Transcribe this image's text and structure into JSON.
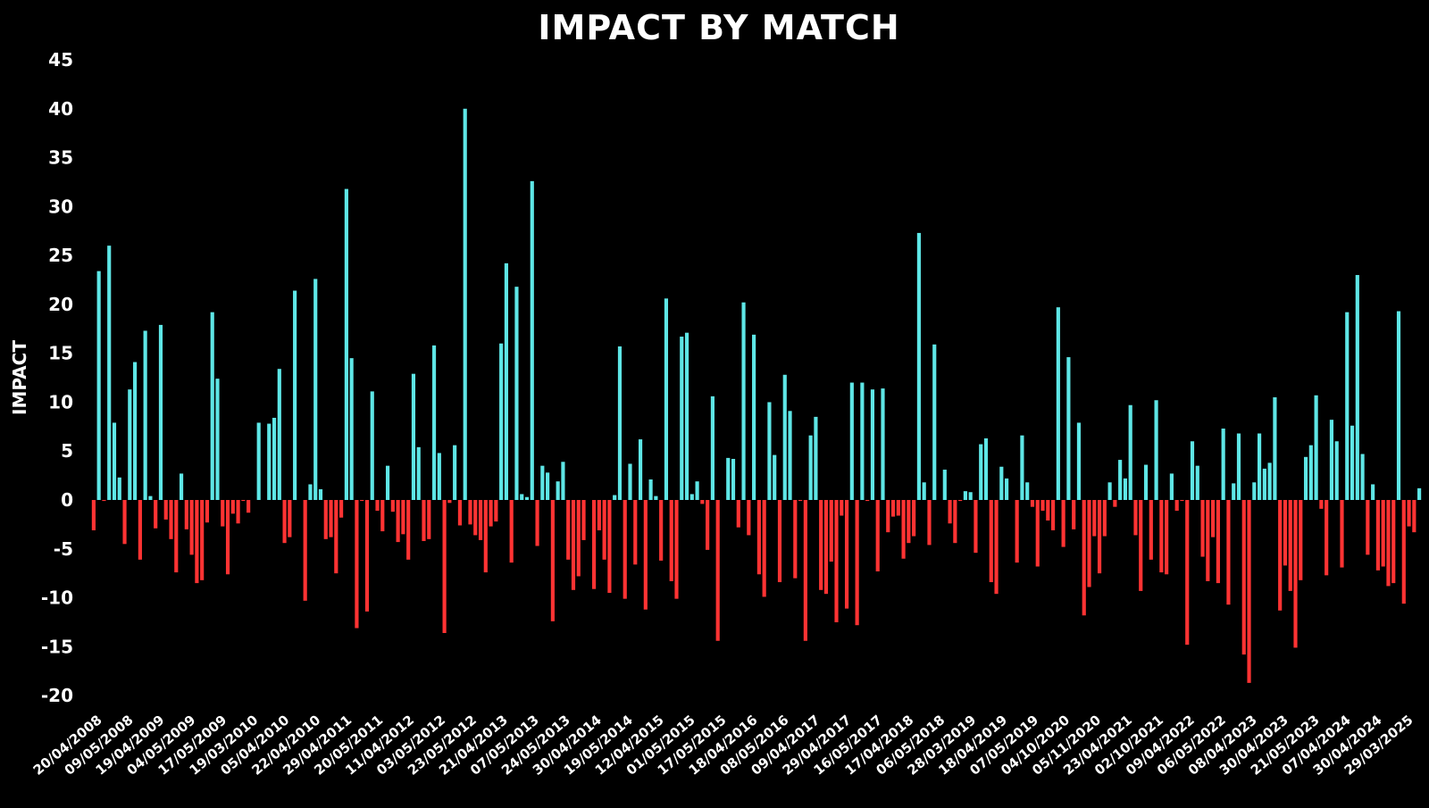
{
  "chart_data": {
    "type": "bar",
    "title": "IMPACT BY MATCH",
    "xlabel": "",
    "ylabel": "IMPACT",
    "ylim": [
      -20,
      45
    ],
    "yticks": [
      45,
      40,
      35,
      30,
      25,
      20,
      15,
      10,
      5,
      0,
      -5,
      -10,
      -15,
      -20
    ],
    "grid": false,
    "positive_color": "#5ee6e6",
    "negative_color": "#ff3333",
    "x_tick_labels": [
      "20/04/2008",
      "09/05/2008",
      "19/04/2009",
      "04/05/2009",
      "17/05/2009",
      "19/03/2010",
      "05/04/2010",
      "22/04/2010",
      "29/04/2011",
      "20/05/2011",
      "11/04/2012",
      "03/05/2012",
      "23/05/2012",
      "21/04/2013",
      "07/05/2013",
      "24/05/2013",
      "30/04/2014",
      "19/05/2014",
      "12/04/2015",
      "01/05/2015",
      "17/05/2015",
      "18/04/2016",
      "08/05/2016",
      "09/04/2017",
      "29/04/2017",
      "16/05/2017",
      "17/04/2018",
      "06/05/2018",
      "28/03/2019",
      "18/04/2019",
      "07/05/2019",
      "04/10/2020",
      "05/11/2020",
      "23/04/2021",
      "02/10/2021",
      "09/04/2022",
      "06/05/2022",
      "08/04/2023",
      "30/04/2023",
      "21/05/2023",
      "07/04/2024",
      "30/04/2024",
      "29/03/2025"
    ],
    "values": [
      -3.1,
      23.4,
      -0.1,
      26,
      7.9,
      2.3,
      -4.5,
      11.3,
      14.1,
      -6.1,
      17.3,
      0.4,
      -2.9,
      17.9,
      -2,
      -4,
      -7.4,
      2.7,
      -3,
      -5.6,
      -8.5,
      -8.2,
      -2.3,
      19.2,
      12.4,
      -2.7,
      -7.6,
      -1.4,
      -2.4,
      -0.1,
      -1.3,
      0,
      7.9,
      0,
      7.8,
      8.4,
      13.4,
      -4.4,
      -3.8,
      21.4,
      0,
      -10.3,
      1.6,
      22.6,
      1.1,
      -4,
      -3.8,
      -7.5,
      -1.8,
      31.8,
      14.5,
      -13.1,
      -0.1,
      -11.4,
      11.1,
      -1.1,
      -3.2,
      3.5,
      -1.2,
      -4.3,
      -3.5,
      -6.1,
      12.9,
      5.4,
      -4.2,
      -4,
      15.8,
      4.8,
      -13.6,
      -0.3,
      5.6,
      -2.6,
      40,
      -2.5,
      -3.6,
      -4.1,
      -7.4,
      -2.7,
      -2.2,
      16,
      24.2,
      -6.4,
      21.8,
      0.6,
      0.3,
      32.6,
      -4.7,
      3.5,
      2.8,
      -12.4,
      1.9,
      3.9,
      -6.1,
      -9.2,
      -7.8,
      -4.1,
      0,
      -9.1,
      -3.1,
      -6.1,
      -9.5,
      0.5,
      15.7,
      -10.1,
      3.7,
      -6.6,
      6.2,
      -11.2,
      2.1,
      0.4,
      -6.2,
      20.6,
      -8.3,
      -10.1,
      16.7,
      17.1,
      0.6,
      1.9,
      -0.4,
      -5.1,
      10.6,
      -14.4,
      0,
      4.3,
      4.2,
      -2.8,
      20.2,
      -3.6,
      16.9,
      -7.6,
      -9.9,
      10,
      4.6,
      -8.4,
      12.8,
      9.1,
      -8,
      -0.1,
      -14.4,
      6.6,
      8.5,
      -9.2,
      -9.6,
      -6.3,
      -12.5,
      -1.6,
      -11.1,
      12,
      -12.8,
      12,
      -0.1,
      11.3,
      -7.3,
      11.4,
      -3.3,
      -1.7,
      -1.6,
      -6,
      -4.4,
      -3.7,
      27.3,
      1.8,
      -4.6,
      15.9,
      0,
      3.1,
      -2.4,
      -4.4,
      -0.1,
      0.9,
      0.8,
      -5.4,
      5.7,
      6.3,
      -8.4,
      -9.6,
      3.4,
      2.2,
      0,
      -6.4,
      6.6,
      1.8,
      -0.7,
      -6.8,
      -1.1,
      -2.1,
      -3.1,
      19.7,
      -4.8,
      14.6,
      -3,
      7.9,
      -11.8,
      -8.9,
      -3.7,
      -7.5,
      -3.7,
      1.8,
      -0.7,
      4.1,
      2.2,
      9.7,
      -3.6,
      -9.3,
      3.6,
      -6.1,
      10.2,
      -7.4,
      -7.6,
      2.7,
      -1.1,
      -0.1,
      -14.8,
      6,
      3.5,
      -5.8,
      -8.3,
      -3.8,
      -8.5,
      7.3,
      -10.7,
      1.7,
      6.8,
      -15.8,
      -18.7,
      1.8,
      6.8,
      3.2,
      3.8,
      10.5,
      -11.3,
      -6.7,
      -9.3,
      -15.1,
      -8.2,
      4.4,
      5.6,
      10.7,
      -0.9,
      -7.7,
      8.2,
      6,
      -6.9,
      19.2,
      7.6,
      23,
      4.7,
      -5.6,
      1.6,
      -7.2,
      -6.8,
      -8.8,
      -8.5,
      19.3,
      -10.6,
      -2.7,
      -3.3,
      1.2
    ]
  }
}
